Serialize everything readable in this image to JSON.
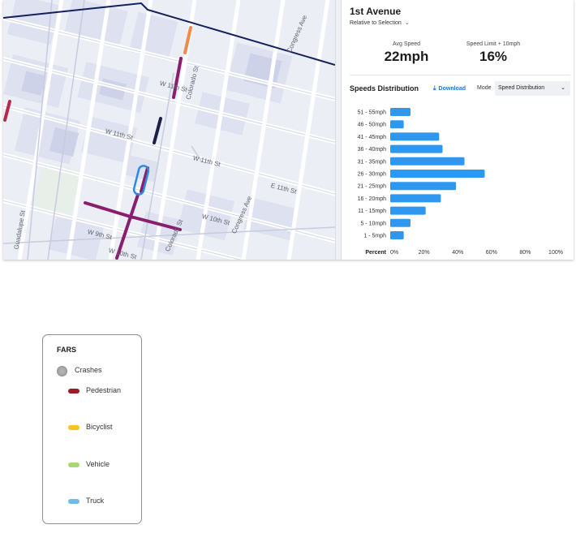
{
  "panel": {
    "title": "1st Avenue",
    "relative_label": "Relative to Selection",
    "stats": [
      {
        "label": "Avg Speed",
        "value": "22mph"
      },
      {
        "label": "Speed Limit + 10mph",
        "value": "16%"
      }
    ],
    "distribution_title": "Speeds Distribution",
    "download_label": "Download",
    "mode_label": "Mode",
    "mode_value": "Speed Distribution"
  },
  "map": {
    "street_labels": [
      "W 11th St",
      "W 11th St",
      "W 11th St",
      "E 11th St",
      "W 10th St",
      "W 9th St",
      "W 10th St",
      "Congress Ave",
      "Colorado St",
      "Guadalupe St",
      "Colorado St",
      "Congress Ave"
    ],
    "highlight_colors": {
      "purple": "#8a1e6e",
      "navy": "#1b1f4a",
      "orange": "#f08a4b",
      "red": "#b52a4a",
      "boundary": "#14205c",
      "selection": "#2d8ae0"
    }
  },
  "legend": {
    "title": "FARS",
    "items": [
      {
        "label": "Crashes",
        "icon": "circle-dot",
        "color": "#a6a6a6"
      },
      {
        "label": "Pedestrian",
        "color": "#9b1c24"
      },
      {
        "label": "Bicyclist",
        "color": "#f5c518"
      },
      {
        "label": "Vehicle",
        "color": "#a8d86a"
      },
      {
        "label": "Truck",
        "color": "#74b9e8"
      }
    ]
  },
  "chart_data": {
    "type": "bar",
    "orientation": "horizontal",
    "title": "Speeds Distribution",
    "xlabel": "Percent",
    "categories": [
      "51 - 55mph",
      "46 - 50mph",
      "41 - 45mph",
      "36 - 40mph",
      "31 - 35mph",
      "26 - 30mph",
      "21 - 25mph",
      "16 - 20mph",
      "11 - 15mph",
      "5 - 10mph",
      "1 - 5mph"
    ],
    "values": [
      12,
      8,
      29,
      31,
      44,
      56,
      39,
      30,
      21,
      12,
      8
    ],
    "x_ticks": [
      "0%",
      "20%",
      "40%",
      "60%",
      "80%",
      "100%"
    ],
    "xlim": [
      0,
      100
    ],
    "bar_color": "#2e97f0"
  }
}
